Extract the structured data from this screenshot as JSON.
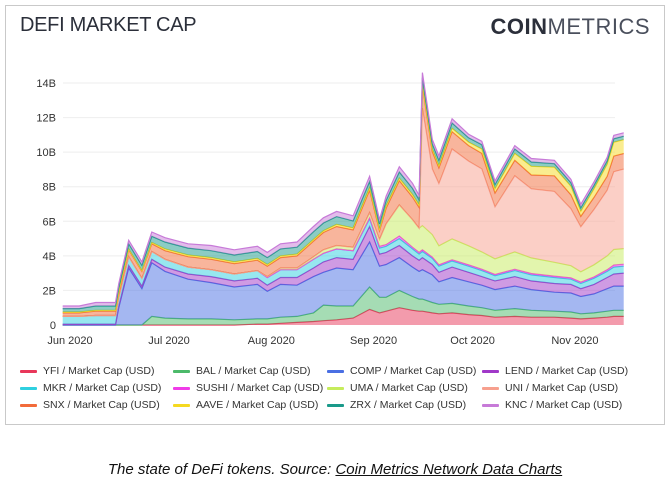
{
  "title": "DEFI MARKET CAP",
  "logo": {
    "bold": "COIN",
    "light": "METRICS"
  },
  "caption": {
    "text": "The state of DeFi tokens. Source: ",
    "link": "Coin Metrics Network Data Charts"
  },
  "chart_data": {
    "type": "area",
    "stacked": true,
    "title": "DEFI MARKET CAP",
    "xlabel": "",
    "ylabel": "",
    "ylim": [
      0,
      14
    ],
    "y_unit": "B USD",
    "y_ticks": [
      {
        "v": 0,
        "label": "0"
      },
      {
        "v": 2,
        "label": "2B"
      },
      {
        "v": 4,
        "label": "4B"
      },
      {
        "v": 6,
        "label": "6B"
      },
      {
        "v": 8,
        "label": "8B"
      },
      {
        "v": 10,
        "label": "10B"
      },
      {
        "v": 12,
        "label": "12B"
      },
      {
        "v": 14,
        "label": "14B"
      }
    ],
    "x_ticks": [
      {
        "d": "2020-06-01",
        "label": "Jun 2020"
      },
      {
        "d": "2020-07-01",
        "label": "Jul 2020"
      },
      {
        "d": "2020-08-01",
        "label": "Aug 2020"
      },
      {
        "d": "2020-09-01",
        "label": "Sep 2020"
      },
      {
        "d": "2020-10-01",
        "label": "Oct 2020"
      },
      {
        "d": "2020-11-01",
        "label": "Nov 2020"
      }
    ],
    "grid": true,
    "legend_position": "bottom",
    "x": [
      "2020-05-31",
      "2020-06-05",
      "2020-06-10",
      "2020-06-16",
      "2020-06-17",
      "2020-06-20",
      "2020-06-24",
      "2020-06-27",
      "2020-07-01",
      "2020-07-08",
      "2020-07-15",
      "2020-07-22",
      "2020-07-29",
      "2020-08-01",
      "2020-08-05",
      "2020-08-10",
      "2020-08-15",
      "2020-08-18",
      "2020-08-22",
      "2020-08-27",
      "2020-09-01",
      "2020-09-04",
      "2020-09-06",
      "2020-09-10",
      "2020-09-14",
      "2020-09-16",
      "2020-09-17",
      "2020-09-20",
      "2020-09-22",
      "2020-09-26",
      "2020-10-01",
      "2020-10-05",
      "2020-10-09",
      "2020-10-15",
      "2020-10-20",
      "2020-10-27",
      "2020-11-01",
      "2020-11-04",
      "2020-11-08",
      "2020-11-12",
      "2020-11-14",
      "2020-11-17"
    ],
    "series": [
      {
        "name": "YFI / Market Cap (USD)",
        "color": "#e8375a",
        "values": [
          0,
          0,
          0,
          0,
          0,
          0,
          0,
          0,
          0,
          0,
          0,
          0,
          0.05,
          0.05,
          0.1,
          0.15,
          0.2,
          0.25,
          0.3,
          0.4,
          0.9,
          0.7,
          0.8,
          1.0,
          0.85,
          0.8,
          0.8,
          0.7,
          0.65,
          0.7,
          0.6,
          0.55,
          0.45,
          0.5,
          0.45,
          0.45,
          0.4,
          0.35,
          0.4,
          0.45,
          0.5,
          0.5
        ]
      },
      {
        "name": "BAL / Market Cap (USD)",
        "color": "#4cba6a",
        "values": [
          0,
          0,
          0,
          0,
          0,
          0,
          0,
          0.5,
          0.4,
          0.35,
          0.35,
          0.3,
          0.3,
          0.3,
          0.35,
          0.35,
          0.5,
          0.9,
          0.8,
          0.7,
          1.3,
          0.9,
          0.8,
          1.0,
          0.8,
          0.7,
          0.7,
          0.6,
          0.55,
          0.55,
          0.5,
          0.45,
          0.4,
          0.45,
          0.4,
          0.35,
          0.35,
          0.3,
          0.3,
          0.35,
          0.35,
          0.35
        ]
      },
      {
        "name": "COMP / Market Cap (USD)",
        "color": "#4a6fe3",
        "values": [
          0,
          0,
          0,
          0,
          1.0,
          3.3,
          2.1,
          3.1,
          2.7,
          2.3,
          2.1,
          1.9,
          2.0,
          1.6,
          1.9,
          1.8,
          2.1,
          1.9,
          2.2,
          2.1,
          2.6,
          1.8,
          1.9,
          1.9,
          1.7,
          1.6,
          1.7,
          1.6,
          1.3,
          1.5,
          1.4,
          1.3,
          1.2,
          1.3,
          1.2,
          1.1,
          1.1,
          1.0,
          1.1,
          1.3,
          1.4,
          1.4
        ]
      },
      {
        "name": "LEND / Market Cap (USD)",
        "color": "#a038c8",
        "values": [
          0.05,
          0.05,
          0.05,
          0.05,
          0.1,
          0.15,
          0.15,
          0.2,
          0.25,
          0.3,
          0.35,
          0.35,
          0.35,
          0.35,
          0.4,
          0.45,
          0.5,
          0.6,
          0.6,
          0.6,
          0.9,
          0.7,
          0.7,
          0.7,
          0.65,
          0.65,
          0.7,
          0.6,
          0.55,
          0.6,
          0.55,
          0.5,
          0.5,
          0.55,
          0.5,
          0.5,
          0.5,
          0.45,
          0.55,
          0.65,
          0.7,
          0.75
        ]
      },
      {
        "name": "MKR / Market Cap (USD)",
        "color": "#2fd0e0",
        "values": [
          0.45,
          0.45,
          0.5,
          0.5,
          0.5,
          0.5,
          0.45,
          0.45,
          0.45,
          0.4,
          0.4,
          0.4,
          0.45,
          0.45,
          0.45,
          0.45,
          0.5,
          0.5,
          0.5,
          0.5,
          0.45,
          0.35,
          0.35,
          0.4,
          0.4,
          0.35,
          0.35,
          0.35,
          0.35,
          0.35,
          0.35,
          0.35,
          0.3,
          0.35,
          0.35,
          0.35,
          0.3,
          0.3,
          0.35,
          0.35,
          0.4,
          0.4
        ]
      },
      {
        "name": "SUSHI / Market Cap (USD)",
        "color": "#f03ce8",
        "values": [
          0,
          0,
          0,
          0,
          0,
          0,
          0,
          0,
          0,
          0,
          0,
          0,
          0,
          0,
          0,
          0,
          0,
          0,
          0,
          0,
          0.05,
          0.1,
          0.1,
          0.15,
          0.1,
          0.1,
          0.1,
          0.08,
          0.08,
          0.08,
          0.08,
          0.08,
          0.08,
          0.08,
          0.08,
          0.08,
          0.08,
          0.08,
          0.08,
          0.1,
          0.12,
          0.12
        ]
      },
      {
        "name": "UMA / Market Cap (USD)",
        "color": "#c6ec5c",
        "values": [
          0,
          0,
          0,
          0,
          0,
          0,
          0,
          0,
          0,
          0,
          0,
          0,
          0,
          0.05,
          0.1,
          0.1,
          0.15,
          0.2,
          0.2,
          0.2,
          0.3,
          0.4,
          1.2,
          1.8,
          1.6,
          1.4,
          1.4,
          1.3,
          1.1,
          1.2,
          1.1,
          1.0,
          0.9,
          1.0,
          0.9,
          0.8,
          0.7,
          0.6,
          0.7,
          0.8,
          0.9,
          0.9
        ]
      },
      {
        "name": "UNI / Market Cap (USD)",
        "color": "#f7a08e",
        "values": [
          0,
          0,
          0,
          0,
          0,
          0,
          0,
          0,
          0,
          0,
          0,
          0,
          0,
          0,
          0,
          0,
          0,
          0,
          0,
          0,
          0,
          0,
          0,
          0,
          0,
          0,
          6.8,
          3.8,
          3.6,
          5.2,
          4.9,
          4.8,
          3.0,
          4.4,
          4.0,
          4.1,
          3.3,
          2.6,
          3.2,
          3.8,
          4.5,
          4.6
        ]
      },
      {
        "name": "SNX / Market Cap (USD)",
        "color": "#f26b3a",
        "values": [
          0.2,
          0.2,
          0.25,
          0.25,
          0.3,
          0.4,
          0.4,
          0.45,
          0.5,
          0.6,
          0.6,
          0.6,
          0.6,
          0.6,
          0.6,
          0.7,
          0.9,
          1.0,
          1.1,
          1.0,
          1.3,
          0.5,
          0.9,
          1.4,
          1.3,
          1.2,
          1.3,
          1.0,
          0.9,
          1.0,
          0.9,
          0.9,
          0.8,
          0.9,
          0.8,
          0.9,
          0.8,
          0.6,
          0.7,
          0.8,
          0.9,
          0.9
        ]
      },
      {
        "name": "AAVE / Market Cap (USD)",
        "color": "#f5d920",
        "values": [
          0.05,
          0.05,
          0.05,
          0.05,
          0.05,
          0.05,
          0.05,
          0.08,
          0.1,
          0.1,
          0.1,
          0.1,
          0.1,
          0.1,
          0.1,
          0.1,
          0.1,
          0.1,
          0.12,
          0.12,
          0.15,
          0.1,
          0.15,
          0.15,
          0.15,
          0.15,
          0.15,
          0.15,
          0.15,
          0.2,
          0.2,
          0.25,
          0.25,
          0.4,
          0.5,
          0.5,
          0.5,
          0.3,
          0.5,
          0.7,
          0.8,
          0.8
        ]
      },
      {
        "name": "ZRX / Market Cap (USD)",
        "color": "#1a9a8a",
        "values": [
          0.2,
          0.2,
          0.25,
          0.25,
          0.25,
          0.3,
          0.3,
          0.35,
          0.4,
          0.4,
          0.4,
          0.4,
          0.4,
          0.4,
          0.4,
          0.4,
          0.45,
          0.45,
          0.45,
          0.4,
          0.35,
          0.3,
          0.3,
          0.35,
          0.35,
          0.3,
          0.3,
          0.3,
          0.3,
          0.3,
          0.25,
          0.25,
          0.25,
          0.25,
          0.25,
          0.2,
          0.2,
          0.2,
          0.2,
          0.2,
          0.2,
          0.2
        ]
      },
      {
        "name": "KNC / Market Cap (USD)",
        "color": "#c77ad8",
        "values": [
          0.15,
          0.15,
          0.2,
          0.2,
          0.2,
          0.2,
          0.2,
          0.25,
          0.25,
          0.25,
          0.3,
          0.3,
          0.3,
          0.3,
          0.3,
          0.3,
          0.3,
          0.3,
          0.3,
          0.3,
          0.3,
          0.25,
          0.25,
          0.3,
          0.3,
          0.25,
          0.3,
          0.25,
          0.25,
          0.25,
          0.2,
          0.2,
          0.2,
          0.2,
          0.2,
          0.2,
          0.2,
          0.2,
          0.2,
          0.2,
          0.2,
          0.2
        ]
      }
    ]
  }
}
